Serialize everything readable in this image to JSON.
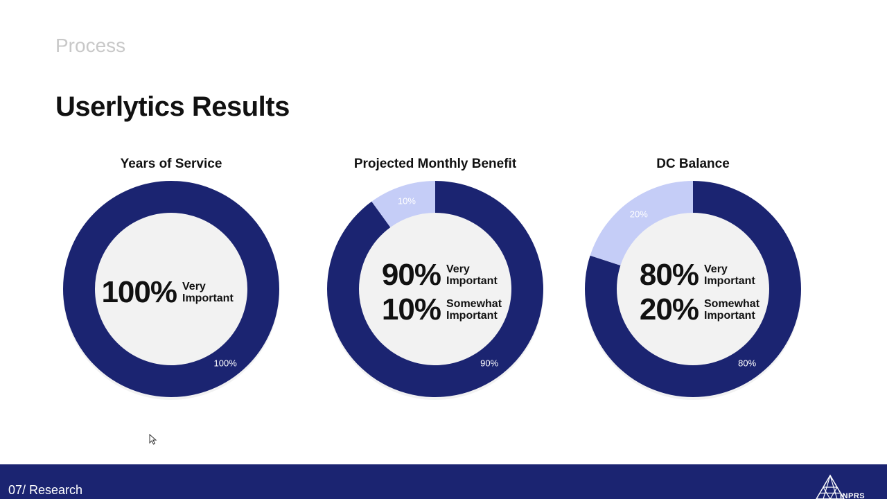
{
  "header": {
    "section_label": "Process",
    "title": "Userlytics Results"
  },
  "colors": {
    "primary": "#1b2471",
    "secondary": "#c5cdf7",
    "footer_bg": "#1b2471"
  },
  "chart_data": [
    {
      "type": "pie",
      "title": "Years of Service",
      "slices": [
        {
          "label": "Very Important",
          "value": 100,
          "data_label": "100%"
        }
      ],
      "center": [
        {
          "pct": "100%",
          "line1": "Very",
          "line2": "Important"
        }
      ]
    },
    {
      "type": "pie",
      "title": "Projected Monthly Benefit",
      "slices": [
        {
          "label": "Very Important",
          "value": 90,
          "data_label": "90%"
        },
        {
          "label": "Somewhat Important",
          "value": 10,
          "data_label": "10%"
        }
      ],
      "center": [
        {
          "pct": "90%",
          "line1": "Very",
          "line2": "Important"
        },
        {
          "pct": "10%",
          "line1": "Somewhat",
          "line2": "Important"
        }
      ]
    },
    {
      "type": "pie",
      "title": "DC Balance",
      "slices": [
        {
          "label": "Very Important",
          "value": 80,
          "data_label": "80%"
        },
        {
          "label": "Somewhat Important",
          "value": 20,
          "data_label": "20%"
        }
      ],
      "center": [
        {
          "pct": "80%",
          "line1": "Very",
          "line2": "Important"
        },
        {
          "pct": "20%",
          "line1": "Somewhat",
          "line2": "Important"
        }
      ]
    }
  ],
  "footer": {
    "label": "07/ Research",
    "logo_text": "INPRS"
  }
}
